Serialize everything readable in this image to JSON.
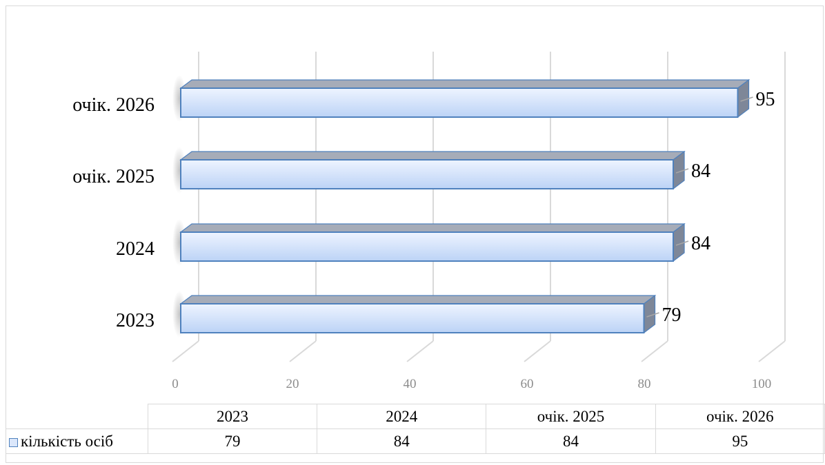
{
  "chart_data": {
    "type": "bar",
    "orientation": "horizontal",
    "style": "3d",
    "categories": [
      "2023",
      "2024",
      "очік. 2025",
      "очік. 2026"
    ],
    "series": [
      {
        "name": "кількість осіб",
        "values": [
          79,
          84,
          84,
          95
        ],
        "color": "#c6d9f8"
      }
    ],
    "xlim": [
      0,
      100
    ],
    "x_ticks": [
      "0",
      "20",
      "40",
      "60",
      "80",
      "100"
    ],
    "grid": true,
    "data_labels": true,
    "data_table": true,
    "title": "",
    "xlabel": "",
    "ylabel": ""
  },
  "colors": {
    "bar_front_top": "#eef4ff",
    "bar_front_bottom": "#bcd3f6",
    "bar_edge": "#4f81bd",
    "bar_top": "#a6acb8",
    "bar_side": "#7e8798",
    "gridline": "#d9d9d9",
    "tick_label": "#8c8c8c"
  }
}
